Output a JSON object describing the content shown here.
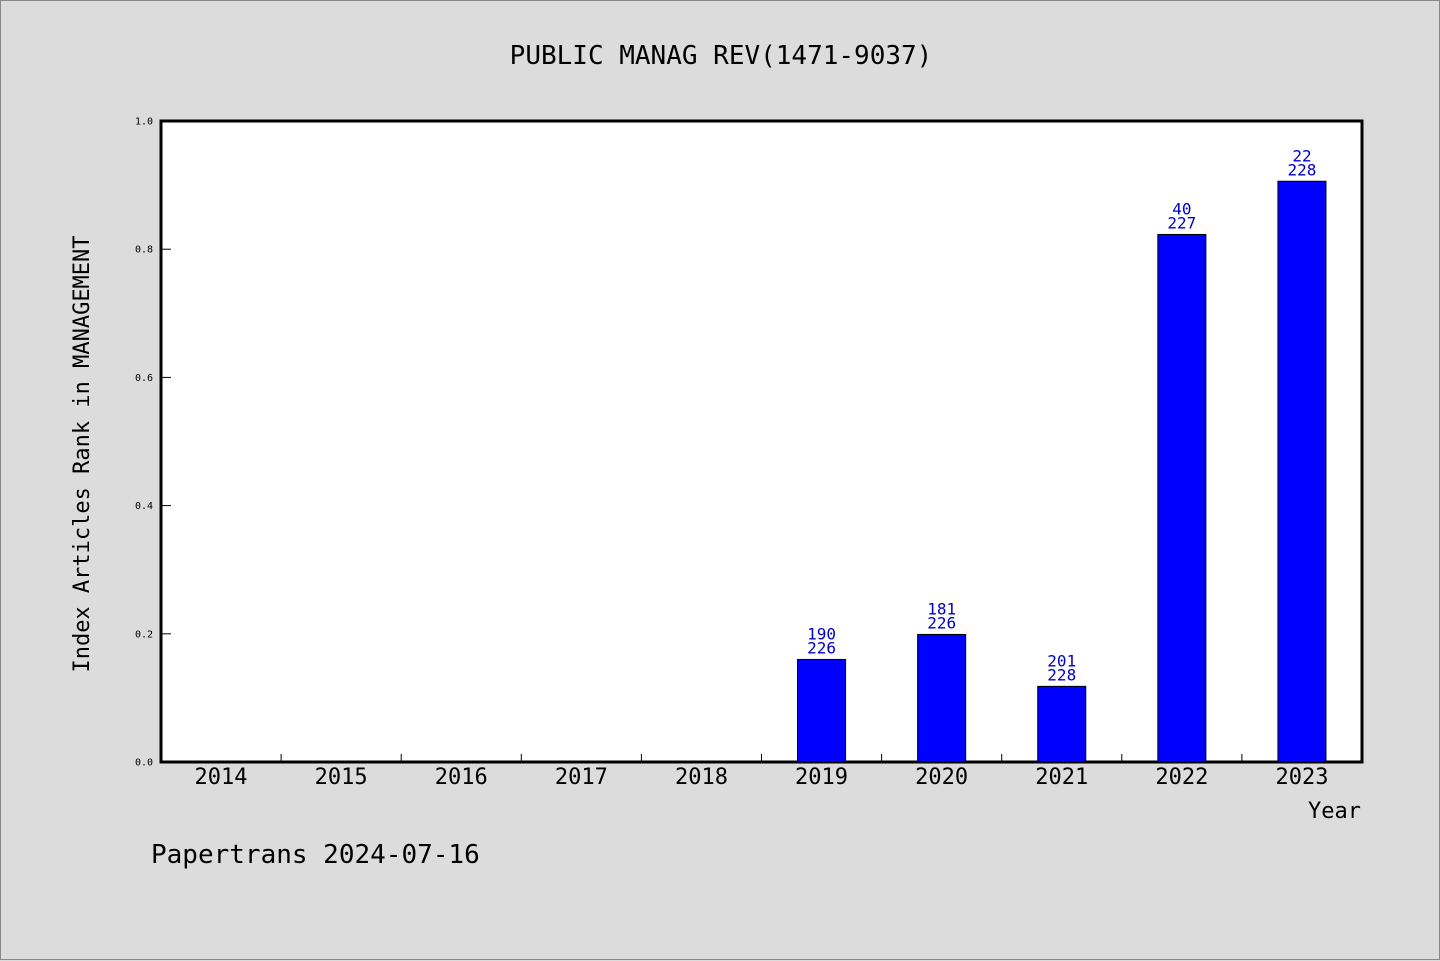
{
  "chart_data": {
    "type": "bar",
    "title": "PUBLIC MANAG REV(1471-9037)",
    "xlabel": "Year",
    "ylabel": "Index Articles Rank in MANAGEMENT",
    "ylim": [
      0,
      1.0
    ],
    "yticks": [
      "0.0",
      "0.2",
      "0.4",
      "0.6",
      "0.8",
      "1.0"
    ],
    "categories": [
      "2014",
      "2015",
      "2016",
      "2017",
      "2018",
      "2019",
      "2020",
      "2021",
      "2022",
      "2023"
    ],
    "values": [
      null,
      null,
      null,
      null,
      null,
      0.16,
      0.199,
      0.118,
      0.823,
      0.906
    ],
    "labels": [
      null,
      null,
      null,
      null,
      null,
      {
        "top": "190",
        "bottom": "226"
      },
      {
        "top": "181",
        "bottom": "226"
      },
      {
        "top": "201",
        "bottom": "228"
      },
      {
        "top": "40",
        "bottom": "227"
      },
      {
        "top": "22",
        "bottom": "228"
      }
    ],
    "bar_color": "#0000ff",
    "label_color": "#0000cc",
    "grid": false
  },
  "footer": "Papertrans 2024-07-16"
}
